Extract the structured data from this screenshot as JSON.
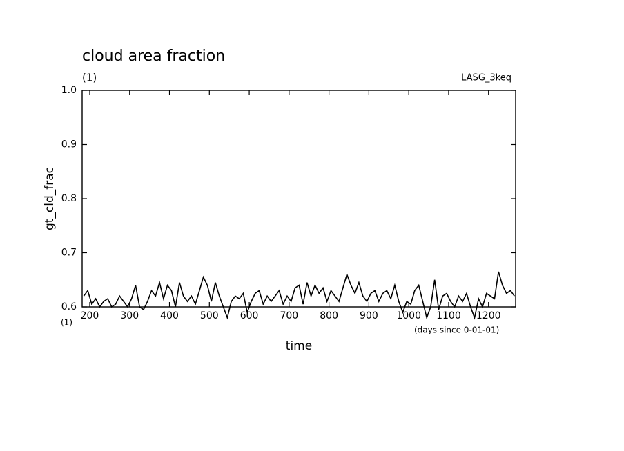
{
  "chart_data": {
    "type": "line",
    "title": "cloud area fraction",
    "subtitle": "(1)",
    "annotation": "LASG_3keq",
    "ylabel": "gt_cld_frac",
    "xlabel": "time",
    "x_unit_label": "(1)",
    "x_units": "(days since 0-01-01)",
    "color": "#000000",
    "x": [
      185,
      195,
      205,
      215,
      225,
      235,
      245,
      255,
      265,
      275,
      285,
      295,
      305,
      315,
      325,
      335,
      345,
      355,
      365,
      375,
      385,
      395,
      405,
      415,
      425,
      435,
      445,
      455,
      465,
      475,
      485,
      495,
      505,
      515,
      525,
      535,
      545,
      555,
      565,
      575,
      585,
      595,
      605,
      615,
      625,
      635,
      645,
      655,
      665,
      675,
      685,
      695,
      705,
      715,
      725,
      735,
      745,
      755,
      765,
      775,
      785,
      795,
      805,
      815,
      825,
      835,
      845,
      855,
      865,
      875,
      885,
      895,
      905,
      915,
      925,
      935,
      945,
      955,
      965,
      975,
      985,
      995,
      1005,
      1015,
      1025,
      1035,
      1045,
      1055,
      1065,
      1075,
      1085,
      1095,
      1105,
      1115,
      1125,
      1135,
      1145,
      1155,
      1165,
      1175,
      1185,
      1195,
      1205,
      1215,
      1225,
      1235,
      1245,
      1255,
      1265
    ],
    "values": [
      0.62,
      0.63,
      0.605,
      0.615,
      0.6,
      0.61,
      0.615,
      0.6,
      0.605,
      0.62,
      0.61,
      0.6,
      0.615,
      0.64,
      0.6,
      0.595,
      0.61,
      0.63,
      0.62,
      0.645,
      0.615,
      0.64,
      0.63,
      0.6,
      0.645,
      0.62,
      0.61,
      0.62,
      0.605,
      0.63,
      0.655,
      0.64,
      0.61,
      0.645,
      0.62,
      0.6,
      0.58,
      0.61,
      0.62,
      0.615,
      0.625,
      0.59,
      0.61,
      0.625,
      0.63,
      0.605,
      0.62,
      0.61,
      0.62,
      0.63,
      0.605,
      0.62,
      0.61,
      0.635,
      0.64,
      0.605,
      0.645,
      0.62,
      0.64,
      0.625,
      0.635,
      0.61,
      0.63,
      0.62,
      0.61,
      0.635,
      0.66,
      0.64,
      0.625,
      0.645,
      0.62,
      0.61,
      0.625,
      0.63,
      0.61,
      0.625,
      0.63,
      0.615,
      0.64,
      0.61,
      0.59,
      0.61,
      0.605,
      0.63,
      0.64,
      0.61,
      0.58,
      0.6,
      0.65,
      0.595,
      0.62,
      0.625,
      0.61,
      0.6,
      0.62,
      0.61,
      0.625,
      0.6,
      0.58,
      0.615,
      0.6,
      0.625,
      0.62,
      0.615,
      0.665,
      0.64,
      0.625,
      0.63,
      0.62
    ],
    "xlim": [
      181,
      1268
    ],
    "ylim": [
      0.6,
      1.0
    ],
    "xticks": [
      200,
      300,
      400,
      500,
      600,
      700,
      800,
      900,
      1000,
      1100,
      1200
    ],
    "yticks": [
      0.6,
      0.7,
      0.8,
      0.9,
      {
        "value": 1.0,
        "label": "1.0"
      }
    ],
    "grid": false
  }
}
